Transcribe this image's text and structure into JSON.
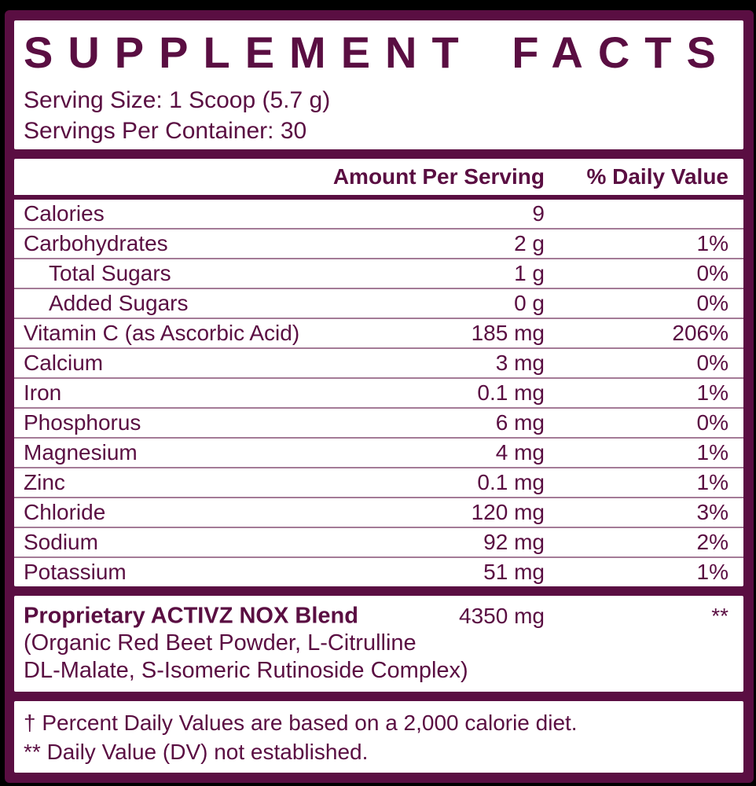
{
  "colors": {
    "background": "#000000",
    "frame_maroon": "#5a0e42",
    "panel_white": "#ffffff",
    "row_divider": "rgba(90,14,66,0.55)"
  },
  "header": {
    "title": "SUPPLEMENT FACTS",
    "serving_size": "Serving Size: 1 Scoop (5.7 g)",
    "servings_per_container": "Servings Per Container: 30"
  },
  "table": {
    "col_amount": "Amount Per Serving",
    "col_dv": "% Daily Value",
    "rows": [
      {
        "name": "Calories",
        "amount": "9",
        "dv": "",
        "indent": false
      },
      {
        "name": "Carbohydrates",
        "amount": "2 g",
        "dv": "1%",
        "indent": false
      },
      {
        "name": "Total Sugars",
        "amount": "1 g",
        "dv": "0%",
        "indent": true
      },
      {
        "name": "Added Sugars",
        "amount": "0 g",
        "dv": "0%",
        "indent": true
      },
      {
        "name": "Vitamin C (as Ascorbic Acid)",
        "amount": "185 mg",
        "dv": "206%",
        "indent": false
      },
      {
        "name": "Calcium",
        "amount": "3 mg",
        "dv": "0%",
        "indent": false
      },
      {
        "name": "Iron",
        "amount": "0.1 mg",
        "dv": "1%",
        "indent": false
      },
      {
        "name": "Phosphorus",
        "amount": "6 mg",
        "dv": "0%",
        "indent": false
      },
      {
        "name": "Magnesium",
        "amount": "4 mg",
        "dv": "1%",
        "indent": false
      },
      {
        "name": "Zinc",
        "amount": "0.1 mg",
        "dv": "1%",
        "indent": false
      },
      {
        "name": "Chloride",
        "amount": "120 mg",
        "dv": "3%",
        "indent": false
      },
      {
        "name": "Sodium",
        "amount": "92 mg",
        "dv": "2%",
        "indent": false
      },
      {
        "name": "Potassium",
        "amount": "51 mg",
        "dv": "1%",
        "indent": false
      }
    ]
  },
  "blend": {
    "name": "Proprietary ACTIVZ NOX Blend",
    "amount": "4350 mg",
    "dv": "**",
    "description_lines": [
      "(Organic Red Beet Powder, L-Citrulline",
      "DL-Malate, S-Isomeric Rutinoside Complex)"
    ]
  },
  "footnotes": [
    "† Percent Daily Values are based on a 2,000 calorie diet.",
    "** Daily Value (DV) not established."
  ]
}
